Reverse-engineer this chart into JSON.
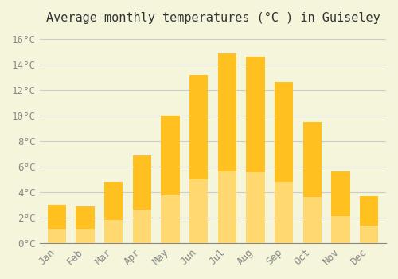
{
  "title": "Average monthly temperatures (°C ) in Guiseley",
  "months": [
    "Jan",
    "Feb",
    "Mar",
    "Apr",
    "May",
    "Jun",
    "Jul",
    "Aug",
    "Sep",
    "Oct",
    "Nov",
    "Dec"
  ],
  "values": [
    3.0,
    2.9,
    4.8,
    6.9,
    10.0,
    13.2,
    14.85,
    14.65,
    12.6,
    9.5,
    5.65,
    3.7
  ],
  "bar_color_top": "#FFC020",
  "bar_color_bottom": "#FFD870",
  "background_color": "#F5F5DC",
  "grid_color": "#CCCCCC",
  "ytick_labels": [
    "0°C",
    "2°C",
    "4°C",
    "6°C",
    "8°C",
    "10°C",
    "12°C",
    "14°C",
    "16°C"
  ],
  "ytick_values": [
    0,
    2,
    4,
    6,
    8,
    10,
    12,
    14,
    16
  ],
  "ylim": [
    0,
    16.5
  ],
  "title_fontsize": 11,
  "tick_fontsize": 9,
  "bar_edge_color": "none"
}
